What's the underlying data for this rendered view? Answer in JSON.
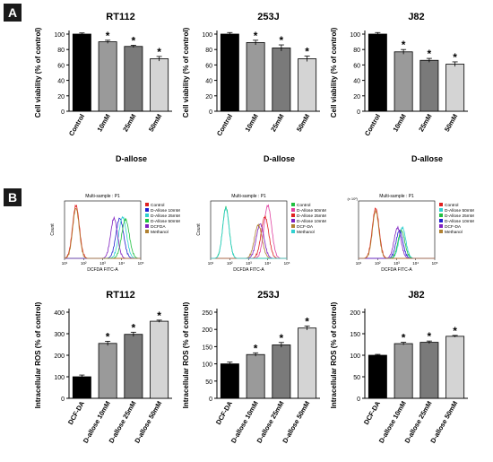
{
  "panels": {
    "a": "A",
    "b": "B"
  },
  "chart_data": [
    {
      "type": "bar",
      "title": "RT112",
      "categories": [
        "Control",
        "10mM",
        "25mM",
        "50mM"
      ],
      "values": [
        100,
        90,
        84,
        68
      ],
      "errors": [
        1.5,
        2.0,
        1.5,
        3.0
      ],
      "significant": [
        false,
        true,
        true,
        true
      ],
      "ylabel": "Cell viability (% of control)",
      "xlabel": "D-allose",
      "ylim": [
        0,
        100
      ],
      "yticks": [
        0,
        20,
        40,
        60,
        80,
        100
      ],
      "colors": [
        "#000000",
        "#9a9a9a",
        "#7a7a7a",
        "#d4d4d4"
      ],
      "sig_mark": "*"
    },
    {
      "type": "bar",
      "title": "253J",
      "categories": [
        "Control",
        "10mM",
        "25mM",
        "50mM"
      ],
      "values": [
        100,
        89,
        82,
        68
      ],
      "errors": [
        2.0,
        3.0,
        4.0,
        3.5
      ],
      "significant": [
        false,
        true,
        true,
        true
      ],
      "ylabel": "Cell viability (% of control)",
      "xlabel": "D-allose",
      "ylim": [
        0,
        100
      ],
      "yticks": [
        0,
        20,
        40,
        60,
        80,
        100
      ],
      "colors": [
        "#000000",
        "#9a9a9a",
        "#7a7a7a",
        "#d4d4d4"
      ],
      "sig_mark": "*"
    },
    {
      "type": "bar",
      "title": "J82",
      "categories": [
        "Control",
        "10mM",
        "25mM",
        "50mM"
      ],
      "values": [
        100,
        77,
        66,
        61
      ],
      "errors": [
        2.0,
        3.0,
        2.5,
        3.0
      ],
      "significant": [
        false,
        true,
        true,
        true
      ],
      "ylabel": "Cell viability (% of control)",
      "xlabel": "D-allose",
      "ylim": [
        0,
        100
      ],
      "yticks": [
        0,
        20,
        40,
        60,
        80,
        100
      ],
      "colors": [
        "#000000",
        "#9a9a9a",
        "#7a7a7a",
        "#d4d4d4"
      ],
      "sig_mark": "*"
    },
    {
      "type": "line",
      "title": "Multi-sample : P1",
      "xlabel": "DCFDA FITC-A",
      "ylabel": "Count",
      "xscale": "log",
      "xticks": [
        "10¹",
        "10²",
        "10³",
        "10⁴",
        "10⁵"
      ],
      "legend": "right",
      "series": [
        {
          "name": "Control",
          "color": "#e02020",
          "peak": 1.6,
          "width": 0.18,
          "height": 0.95
        },
        {
          "name": "D-Allose 10mM",
          "color": "#2020d0",
          "peak": 3.9,
          "width": 0.2,
          "height": 0.72
        },
        {
          "name": "D-Allose 25mM",
          "color": "#2fd0d0",
          "peak": 4.05,
          "width": 0.2,
          "height": 0.74
        },
        {
          "name": "D-Allose 50mM",
          "color": "#20c040",
          "peak": 4.2,
          "width": 0.2,
          "height": 0.7
        },
        {
          "name": "DCFDA",
          "color": "#8020c0",
          "peak": 3.6,
          "width": 0.18,
          "height": 0.72
        },
        {
          "name": "Methanol",
          "color": "#b08030",
          "peak": 1.6,
          "width": 0.17,
          "height": 0.9
        }
      ]
    },
    {
      "type": "line",
      "title": "Multi-sample : P1",
      "xlabel": "DCFDA FITC-A",
      "ylabel": "Count",
      "xscale": "log",
      "xticks": [
        "10¹",
        "10²",
        "10³",
        "10⁴",
        "10⁵"
      ],
      "legend": "right",
      "series": [
        {
          "name": "Control",
          "color": "#20c040",
          "peak": 1.8,
          "width": 0.17,
          "height": 0.92
        },
        {
          "name": "D-Allose 50mM",
          "color": "#e040a0",
          "peak": 4.0,
          "width": 0.2,
          "height": 0.95
        },
        {
          "name": "D-Allose 25mM",
          "color": "#e02020",
          "peak": 3.85,
          "width": 0.2,
          "height": 0.75
        },
        {
          "name": "D-Allose 10mM",
          "color": "#8020c0",
          "peak": 3.6,
          "width": 0.2,
          "height": 0.62
        },
        {
          "name": "DCF-DA",
          "color": "#b08030",
          "peak": 3.5,
          "width": 0.2,
          "height": 0.6
        },
        {
          "name": "Methanol",
          "color": "#2fd0d0",
          "peak": 1.8,
          "width": 0.17,
          "height": 0.9
        }
      ]
    },
    {
      "type": "line",
      "title": "Multi-sample : P1",
      "xlabel": "DCFDA FITC-A",
      "ylabel": "",
      "xscale": "log",
      "xticks": [
        "10¹",
        "10²",
        "10³",
        "10⁴",
        "10⁵"
      ],
      "ytick_top": "(x 10²)",
      "legend": "right",
      "series": [
        {
          "name": "Control",
          "color": "#e02020",
          "peak": 1.9,
          "width": 0.18,
          "height": 0.9
        },
        {
          "name": "D-Allose 50mM",
          "color": "#2fd0d0",
          "peak": 3.3,
          "width": 0.18,
          "height": 0.55
        },
        {
          "name": "D-Allose 25mM",
          "color": "#20c040",
          "peak": 3.25,
          "width": 0.18,
          "height": 0.5
        },
        {
          "name": "D-Allose 10mM",
          "color": "#2020d0",
          "peak": 3.15,
          "width": 0.18,
          "height": 0.5
        },
        {
          "name": "DCF-DA",
          "color": "#8020c0",
          "peak": 3.05,
          "width": 0.18,
          "height": 0.55
        },
        {
          "name": "Methanol",
          "color": "#b08030",
          "peak": 1.9,
          "width": 0.17,
          "height": 0.85
        }
      ]
    },
    {
      "type": "bar",
      "title": "RT112",
      "categories": [
        "DCF-DA",
        "D-allose 10mM",
        "D-allose 25mM",
        "D-allose 50mM"
      ],
      "values": [
        100,
        255,
        297,
        358
      ],
      "errors": [
        8,
        10,
        10,
        5
      ],
      "significant": [
        false,
        true,
        true,
        true
      ],
      "ylabel": "Intracellular ROS (% of control)",
      "xlabel": "",
      "ylim": [
        0,
        400
      ],
      "yticks": [
        0,
        100,
        200,
        300,
        400
      ],
      "colors": [
        "#000000",
        "#9a9a9a",
        "#7a7a7a",
        "#d4d4d4"
      ],
      "sig_mark": "*"
    },
    {
      "type": "bar",
      "title": "253J",
      "categories": [
        "DCF-DA",
        "D-allose 10mM",
        "D-allose 25mM",
        "D-allose 50mM"
      ],
      "values": [
        100,
        127,
        155,
        204
      ],
      "errors": [
        5,
        5,
        7,
        6
      ],
      "significant": [
        false,
        true,
        true,
        true
      ],
      "ylabel": "Intracellular ROS (% of control)",
      "xlabel": "",
      "ylim": [
        0,
        250
      ],
      "yticks": [
        0,
        50,
        100,
        150,
        200,
        250
      ],
      "colors": [
        "#000000",
        "#9a9a9a",
        "#7a7a7a",
        "#d4d4d4"
      ],
      "sig_mark": "*"
    },
    {
      "type": "bar",
      "title": "J82",
      "categories": [
        "DCF-DA",
        "D-allose 10mM",
        "D-allose 25mM",
        "D-allose 50mM"
      ],
      "values": [
        100,
        127,
        130,
        144
      ],
      "errors": [
        2,
        3,
        3,
        2
      ],
      "significant": [
        false,
        true,
        true,
        true
      ],
      "ylabel": "Intracellular ROS (% of control)",
      "xlabel": "",
      "ylim": [
        0,
        200
      ],
      "yticks": [
        0,
        50,
        100,
        150,
        200
      ],
      "colors": [
        "#000000",
        "#9a9a9a",
        "#7a7a7a",
        "#d4d4d4"
      ],
      "sig_mark": "*"
    }
  ]
}
